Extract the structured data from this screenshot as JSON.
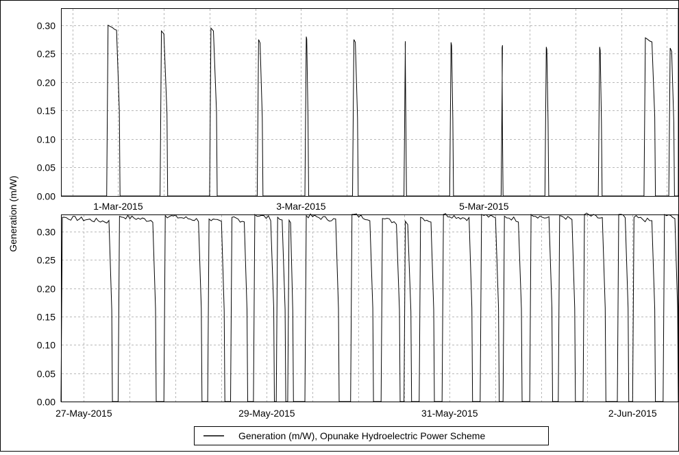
{
  "chart_data": [
    {
      "type": "line",
      "ylabel": "Generation (m/W)",
      "ylim": [
        0,
        0.33
      ],
      "yticks": [
        "0.30",
        "0.25",
        "0.20",
        "0.15",
        "0.10",
        "0.05",
        "0.00"
      ],
      "yvalues": [
        0.3,
        0.25,
        0.2,
        0.15,
        0.1,
        0.05,
        0.0
      ],
      "xlim": [
        "2015-02-28T09:00",
        "2015-03-07T03:00"
      ],
      "xticks": [
        {
          "label": "1-Mar-2015",
          "date": "2015-03-01"
        },
        {
          "label": "3-Mar-2015",
          "date": "2015-03-03"
        },
        {
          "label": "5-Mar-2015",
          "date": "2015-03-05"
        }
      ],
      "grid": true,
      "line_color": "#000000",
      "series": [
        {
          "name": "Generation (m/W), Opunake Hydroelectric Power Scheme",
          "pulses": [
            {
              "start": "2015-02-28T21:00",
              "end": "2015-03-01T00:30",
              "peak": 0.3
            },
            {
              "start": "2015-03-01T11:00",
              "end": "2015-03-01T13:00",
              "peak": 0.29
            },
            {
              "start": "2015-03-02T00:00",
              "end": "2015-03-02T02:00",
              "peak": 0.295
            },
            {
              "start": "2015-03-02T12:30",
              "end": "2015-03-02T14:00",
              "peak": 0.275
            },
            {
              "start": "2015-03-03T01:00",
              "end": "2015-03-03T02:00",
              "peak": 0.28
            },
            {
              "start": "2015-03-03T13:30",
              "end": "2015-03-03T15:00",
              "peak": 0.275
            },
            {
              "start": "2015-03-04T03:00",
              "end": "2015-03-04T03:40",
              "peak": 0.272
            },
            {
              "start": "2015-03-04T15:00",
              "end": "2015-03-04T16:00",
              "peak": 0.27
            },
            {
              "start": "2015-03-05T04:30",
              "end": "2015-03-05T05:00",
              "peak": 0.265
            },
            {
              "start": "2015-03-05T16:00",
              "end": "2015-03-05T17:00",
              "peak": 0.262
            },
            {
              "start": "2015-03-06T06:00",
              "end": "2015-03-06T07:00",
              "peak": 0.262
            },
            {
              "start": "2015-03-06T18:00",
              "end": "2015-03-06T21:00",
              "peak": 0.278
            },
            {
              "start": "2015-03-07T00:30",
              "end": "2015-03-07T02:00",
              "peak": 0.26
            }
          ]
        }
      ]
    },
    {
      "type": "line",
      "ylabel": "Generation (m/W)",
      "ylim": [
        0,
        0.33
      ],
      "yticks": [
        "0.30",
        "0.25",
        "0.20",
        "0.15",
        "0.10",
        "0.05",
        "0.00"
      ],
      "yvalues": [
        0.3,
        0.25,
        0.2,
        0.15,
        0.1,
        0.05,
        0.0
      ],
      "xlim": [
        "2015-05-26T18:00",
        "2015-06-02T12:00"
      ],
      "xticks": [
        {
          "label": "27-May-2015",
          "date": "2015-05-27"
        },
        {
          "label": "29-May-2015",
          "date": "2015-05-29"
        },
        {
          "label": "31-May-2015",
          "date": "2015-05-31"
        },
        {
          "label": "2-Jun-2015",
          "date": "2015-06-02"
        }
      ],
      "grid": true,
      "line_color": "#000000",
      "series": [
        {
          "name": "Generation (m/W), Opunake Hydroelectric Power Scheme",
          "pulses": [
            {
              "start": "2015-05-26T18:00",
              "end": "2015-05-27T07:30",
              "peak": 0.325
            },
            {
              "start": "2015-05-27T09:00",
              "end": "2015-05-27T19:00",
              "peak": 0.327
            },
            {
              "start": "2015-05-27T21:00",
              "end": "2015-05-28T07:00",
              "peak": 0.328
            },
            {
              "start": "2015-05-28T08:30",
              "end": "2015-05-28T13:00",
              "peak": 0.322
            },
            {
              "start": "2015-05-28T14:30",
              "end": "2015-05-28T19:00",
              "peak": 0.325
            },
            {
              "start": "2015-05-28T20:30",
              "end": "2015-05-29T02:00",
              "peak": 0.33
            },
            {
              "start": "2015-05-29T02:30",
              "end": "2015-05-29T05:00",
              "peak": 0.325
            },
            {
              "start": "2015-05-29T05:30",
              "end": "2015-05-29T07:00",
              "peak": 0.32
            },
            {
              "start": "2015-05-29T10:00",
              "end": "2015-05-29T19:00",
              "peak": 0.328
            },
            {
              "start": "2015-05-29T22:00",
              "end": "2015-05-30T04:00",
              "peak": 0.33
            },
            {
              "start": "2015-05-30T06:00",
              "end": "2015-05-30T11:00",
              "peak": 0.323
            },
            {
              "start": "2015-05-30T12:00",
              "end": "2015-05-30T14:00",
              "peak": 0.318
            },
            {
              "start": "2015-05-30T16:00",
              "end": "2015-05-30T20:00",
              "peak": 0.325
            },
            {
              "start": "2015-05-30T22:00",
              "end": "2015-05-31T06:00",
              "peak": 0.33
            },
            {
              "start": "2015-05-31T08:00",
              "end": "2015-05-31T13:00",
              "peak": 0.33
            },
            {
              "start": "2015-05-31T14:00",
              "end": "2015-05-31T19:00",
              "peak": 0.327
            },
            {
              "start": "2015-05-31T21:00",
              "end": "2015-06-01T03:00",
              "peak": 0.33
            },
            {
              "start": "2015-06-01T04:30",
              "end": "2015-06-01T09:00",
              "peak": 0.328
            },
            {
              "start": "2015-06-01T11:00",
              "end": "2015-06-01T17:00",
              "peak": 0.33
            },
            {
              "start": "2015-06-01T20:00",
              "end": "2015-06-01T23:00",
              "peak": 0.33
            },
            {
              "start": "2015-06-02T00:00",
              "end": "2015-06-02T06:00",
              "peak": 0.325
            },
            {
              "start": "2015-06-02T08:00",
              "end": "2015-06-02T12:00",
              "peak": 0.33
            }
          ]
        }
      ]
    }
  ],
  "legend": {
    "label": "Generation (m/W), Opunake Hydroelectric Power Scheme",
    "placement": "bottom-center"
  }
}
